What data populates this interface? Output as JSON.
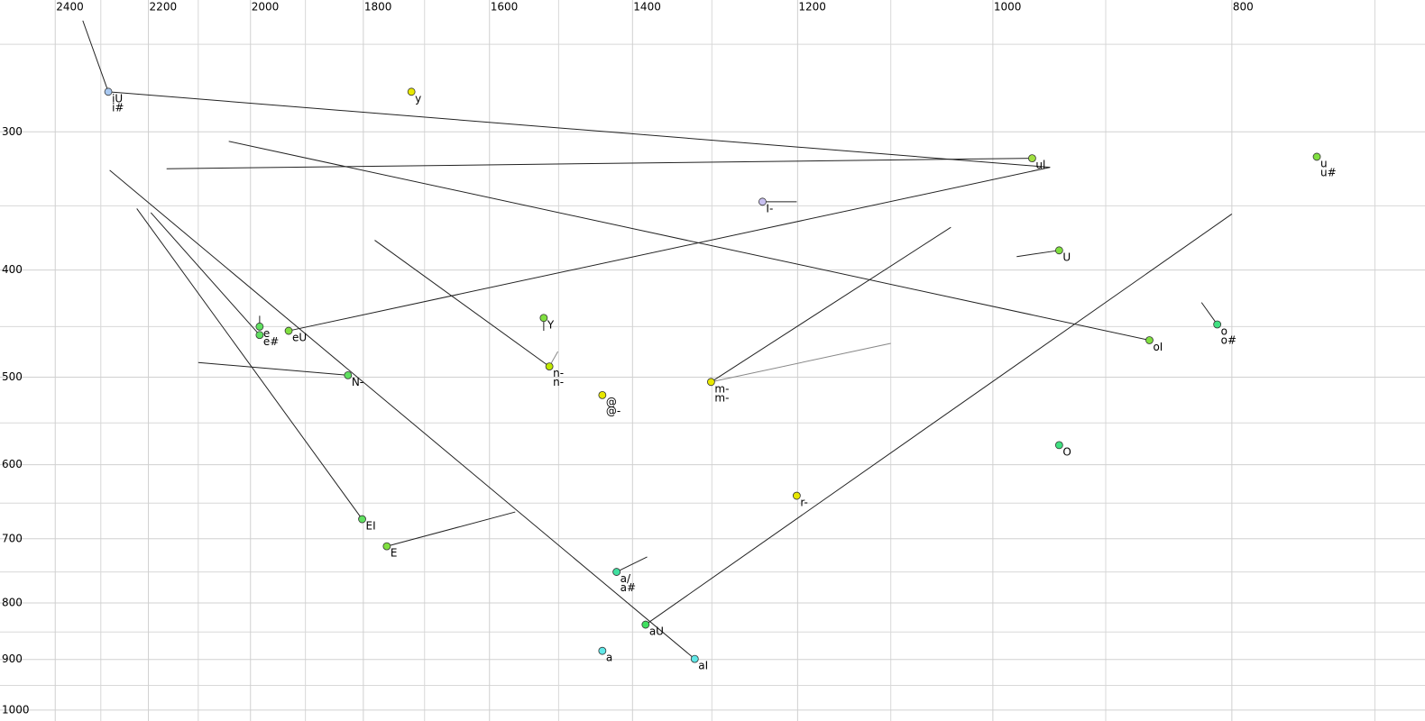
{
  "chart_data": {
    "type": "scatter",
    "xlog": true,
    "ylog": true,
    "grid": true,
    "xlim": [
      2527,
      668
    ],
    "ylim": [
      228,
      1023
    ],
    "xticks": [
      2400,
      2200,
      2000,
      1800,
      1600,
      1400,
      1200,
      1000,
      800
    ],
    "yticks": [
      300,
      400,
      500,
      600,
      700,
      800,
      900,
      1000
    ],
    "x_minor_ticks": [
      2300,
      2100,
      1900,
      1700,
      1500,
      1300,
      1100,
      900,
      700
    ],
    "y_minor_ticks": [
      250,
      350,
      450,
      550,
      650,
      750,
      850,
      950
    ],
    "points": [
      {
        "x": 2284,
        "y": 276,
        "labels": [
          "iU",
          "i#"
        ],
        "color": "#a8c8f0"
      },
      {
        "x": 1721,
        "y": 276,
        "labels": [
          "y"
        ],
        "color": "#e8e800"
      },
      {
        "x": 964,
        "y": 317,
        "labels": [
          "ul"
        ],
        "color": "#a0e040"
      },
      {
        "x": 739,
        "y": 316,
        "labels": [
          "u",
          "u#"
        ],
        "color": "#80e040"
      },
      {
        "x": 1240,
        "y": 347,
        "labels": [
          "I-"
        ],
        "color": "#c8c0f0"
      },
      {
        "x": 940,
        "y": 384,
        "labels": [
          "U"
        ],
        "color": "#80e040"
      },
      {
        "x": 1983,
        "y": 450,
        "labels": [
          "e"
        ],
        "color": "#60e060"
      },
      {
        "x": 1983,
        "y": 458,
        "labels": [
          "e#"
        ],
        "color": "#60e060"
      },
      {
        "x": 1930,
        "y": 454,
        "labels": [
          "eU"
        ],
        "color": "#80e040"
      },
      {
        "x": 1521,
        "y": 442,
        "labels": [
          "Y"
        ],
        "color": "#80e040"
      },
      {
        "x": 1513,
        "y": 489,
        "labels": [
          "n-",
          "n-"
        ],
        "color": "#c0e800"
      },
      {
        "x": 1826,
        "y": 498,
        "labels": [
          "N-"
        ],
        "color": "#60e060"
      },
      {
        "x": 864,
        "y": 463,
        "labels": [
          "oI"
        ],
        "color": "#80e040"
      },
      {
        "x": 811,
        "y": 448,
        "labels": [
          "o",
          "o#"
        ],
        "color": "#40e080"
      },
      {
        "x": 1301,
        "y": 505,
        "labels": [
          "m-",
          "m-"
        ],
        "color": "#e8e800"
      },
      {
        "x": 1440,
        "y": 519,
        "labels": [
          "@",
          "@-"
        ],
        "color": "#e8e800"
      },
      {
        "x": 940,
        "y": 576,
        "labels": [
          "O"
        ],
        "color": "#40e080"
      },
      {
        "x": 1201,
        "y": 640,
        "labels": [
          "r-"
        ],
        "color": "#e8e800"
      },
      {
        "x": 1802,
        "y": 672,
        "labels": [
          "EI"
        ],
        "color": "#60e060"
      },
      {
        "x": 1761,
        "y": 711,
        "labels": [
          "E"
        ],
        "color": "#80e040"
      },
      {
        "x": 1421,
        "y": 750,
        "labels": [
          "a/",
          "a#"
        ],
        "color": "#40e0a0"
      },
      {
        "x": 1383,
        "y": 837,
        "labels": [
          "aU"
        ],
        "color": "#40e060"
      },
      {
        "x": 1440,
        "y": 884,
        "labels": [
          "a"
        ],
        "color": "#60e8e8"
      },
      {
        "x": 1321,
        "y": 899,
        "labels": [
          "aI"
        ],
        "color": "#60e8e8"
      }
    ],
    "segments": [
      {
        "x": [
          2339,
          2284
        ],
        "y": [
          238,
          276
        ],
        "color": "#222222"
      },
      {
        "x": [
          2284,
          948
        ],
        "y": [
          276,
          323
        ],
        "color": "#222222"
      },
      {
        "x": [
          2163,
          964
        ],
        "y": [
          324,
          317
        ],
        "color": "#222222"
      },
      {
        "x": [
          2041,
          864
        ],
        "y": [
          306,
          463
        ],
        "color": "#222222"
      },
      {
        "x": [
          2281,
          1321
        ],
        "y": [
          325,
          899
        ],
        "color": "#222222"
      },
      {
        "x": [
          2224,
          1802
        ],
        "y": [
          352,
          672
        ],
        "color": "#222222"
      },
      {
        "x": [
          2195,
          1983
        ],
        "y": [
          355,
          458
        ],
        "color": "#222222"
      },
      {
        "x": [
          1930,
          948
        ],
        "y": [
          454,
          323
        ],
        "color": "#222222"
      },
      {
        "x": [
          1983,
          1983
        ],
        "y": [
          440,
          450
        ],
        "color": "#222222"
      },
      {
        "x": [
          2100,
          1826
        ],
        "y": [
          485,
          498
        ],
        "color": "#222222"
      },
      {
        "x": [
          1781,
          1513
        ],
        "y": [
          376,
          489
        ],
        "color": "#222222"
      },
      {
        "x": [
          1513,
          1501
        ],
        "y": [
          489,
          474
        ],
        "color": "#888888"
      },
      {
        "x": [
          1521,
          1521
        ],
        "y": [
          442,
          454
        ],
        "color": "#222222"
      },
      {
        "x": [
          1301,
          1040
        ],
        "y": [
          505,
          366
        ],
        "color": "#222222"
      },
      {
        "x": [
          1301,
          1100
        ],
        "y": [
          505,
          466
        ],
        "color": "#888888"
      },
      {
        "x": [
          1240,
          1201
        ],
        "y": [
          347,
          347
        ],
        "color": "#222222"
      },
      {
        "x": [
          978,
          940
        ],
        "y": [
          389,
          384
        ],
        "color": "#222222"
      },
      {
        "x": [
          823,
          811
        ],
        "y": [
          428,
          448
        ],
        "color": "#222222"
      },
      {
        "x": [
          1761,
          1562
        ],
        "y": [
          711,
          662
        ],
        "color": "#222222"
      },
      {
        "x": [
          1421,
          1381
        ],
        "y": [
          750,
          727
        ],
        "color": "#222222"
      },
      {
        "x": [
          1383,
          800
        ],
        "y": [
          837,
          356
        ],
        "color": "#222222"
      }
    ]
  }
}
